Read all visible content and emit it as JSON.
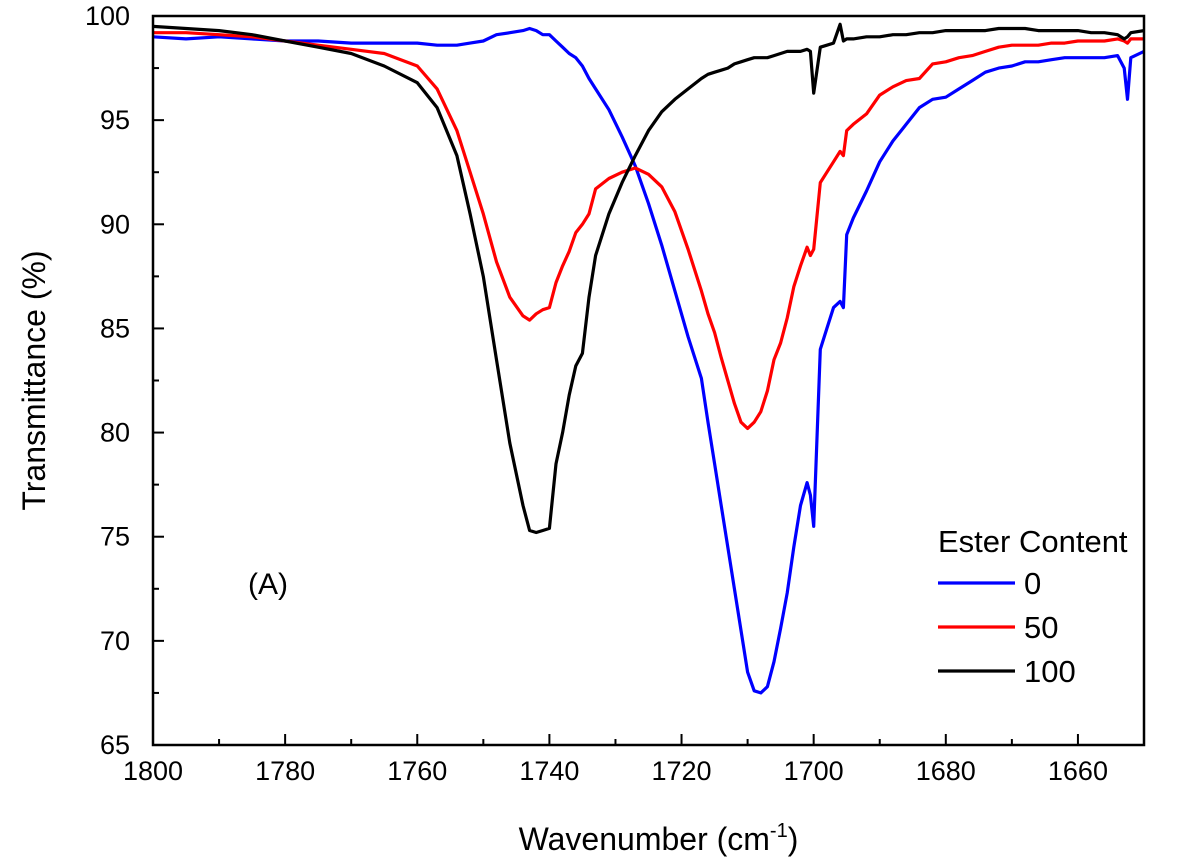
{
  "chart_data": {
    "type": "line",
    "title": "",
    "xlabel": "Wavenumber (cm",
    "xlabel_superscript": "-1",
    "xlabel_suffix": ")",
    "ylabel": "Transmittance (%)",
    "xlim": [
      1800,
      1650
    ],
    "ylim": [
      65,
      100
    ],
    "x_ticks": [
      1800,
      1780,
      1760,
      1740,
      1720,
      1700,
      1680,
      1660
    ],
    "y_ticks": [
      65,
      70,
      75,
      80,
      85,
      90,
      95,
      100
    ],
    "annotation": "(A)",
    "legend": {
      "title": "Ester Content",
      "placement": "bottom-right"
    },
    "x": [
      1800,
      1795,
      1790,
      1785,
      1780,
      1775,
      1770,
      1765,
      1760,
      1757,
      1754,
      1752,
      1750,
      1748,
      1746,
      1744,
      1743,
      1742,
      1741,
      1740,
      1739,
      1738,
      1737,
      1736,
      1735,
      1734,
      1733,
      1731,
      1729,
      1727,
      1725,
      1723,
      1721,
      1719,
      1717,
      1716,
      1715,
      1714,
      1713,
      1712,
      1711,
      1710,
      1709,
      1708,
      1707,
      1706,
      1705,
      1704,
      1703,
      1702,
      1701,
      1700.5,
      1700,
      1699,
      1698,
      1697,
      1696,
      1695.5,
      1695,
      1694,
      1692,
      1690,
      1688,
      1686,
      1684,
      1682,
      1680,
      1678,
      1676,
      1674,
      1672,
      1670,
      1668,
      1666,
      1664,
      1662,
      1660,
      1658,
      1656,
      1654,
      1653,
      1652.5,
      1652,
      1650
    ],
    "series": [
      {
        "name": "0",
        "color": "#0000ff",
        "values": [
          99.0,
          98.9,
          99.0,
          98.9,
          98.8,
          98.8,
          98.7,
          98.7,
          98.7,
          98.6,
          98.6,
          98.7,
          98.8,
          99.1,
          99.2,
          99.3,
          99.4,
          99.3,
          99.1,
          99.1,
          98.8,
          98.5,
          98.2,
          98.0,
          97.6,
          97.0,
          96.5,
          95.5,
          94.2,
          92.8,
          91.0,
          89.0,
          86.8,
          84.6,
          82.6,
          80.5,
          78.5,
          76.5,
          74.5,
          72.5,
          70.5,
          68.5,
          67.6,
          67.5,
          67.8,
          69.0,
          70.6,
          72.3,
          74.5,
          76.5,
          77.6,
          77.0,
          75.5,
          84.0,
          85.0,
          86.0,
          86.3,
          86.0,
          89.5,
          90.3,
          91.6,
          93.0,
          94.0,
          94.8,
          95.6,
          96.0,
          96.1,
          96.5,
          96.9,
          97.3,
          97.5,
          97.6,
          97.8,
          97.8,
          97.9,
          98.0,
          98.0,
          98.0,
          98.0,
          98.1,
          97.5,
          96.0,
          98.0,
          98.3
        ]
      },
      {
        "name": "50",
        "color": "#ff0000",
        "values": [
          99.2,
          99.2,
          99.1,
          99.0,
          98.8,
          98.6,
          98.4,
          98.2,
          97.6,
          96.5,
          94.5,
          92.5,
          90.5,
          88.2,
          86.5,
          85.6,
          85.4,
          85.7,
          85.9,
          86.0,
          87.2,
          88.0,
          88.7,
          89.6,
          90.0,
          90.5,
          91.7,
          92.2,
          92.5,
          92.7,
          92.4,
          91.8,
          90.6,
          88.8,
          86.8,
          85.7,
          84.8,
          83.6,
          82.5,
          81.4,
          80.5,
          80.2,
          80.5,
          81.0,
          82.0,
          83.5,
          84.3,
          85.5,
          87.0,
          88.0,
          88.9,
          88.5,
          88.8,
          92.0,
          92.5,
          93.0,
          93.5,
          93.3,
          94.5,
          94.8,
          95.3,
          96.2,
          96.6,
          96.9,
          97.0,
          97.7,
          97.8,
          98.0,
          98.1,
          98.3,
          98.5,
          98.6,
          98.6,
          98.6,
          98.7,
          98.7,
          98.8,
          98.8,
          98.8,
          98.9,
          98.8,
          98.7,
          98.9,
          98.9
        ]
      },
      {
        "name": "100",
        "color": "#000000",
        "values": [
          99.5,
          99.4,
          99.3,
          99.1,
          98.8,
          98.5,
          98.2,
          97.6,
          96.8,
          95.6,
          93.3,
          90.5,
          87.5,
          83.5,
          79.5,
          76.5,
          75.3,
          75.2,
          75.3,
          75.4,
          78.5,
          80.0,
          81.8,
          83.2,
          83.8,
          86.5,
          88.5,
          90.5,
          92.0,
          93.3,
          94.5,
          95.4,
          96.0,
          96.5,
          97.0,
          97.2,
          97.3,
          97.4,
          97.5,
          97.7,
          97.8,
          97.9,
          98.0,
          98.0,
          98.0,
          98.1,
          98.2,
          98.3,
          98.3,
          98.3,
          98.4,
          98.3,
          96.3,
          98.5,
          98.6,
          98.7,
          99.6,
          98.8,
          98.9,
          98.9,
          99.0,
          99.0,
          99.1,
          99.1,
          99.2,
          99.2,
          99.3,
          99.3,
          99.3,
          99.3,
          99.4,
          99.4,
          99.4,
          99.3,
          99.3,
          99.3,
          99.3,
          99.2,
          99.2,
          99.1,
          98.9,
          99.0,
          99.2,
          99.3
        ]
      }
    ]
  }
}
